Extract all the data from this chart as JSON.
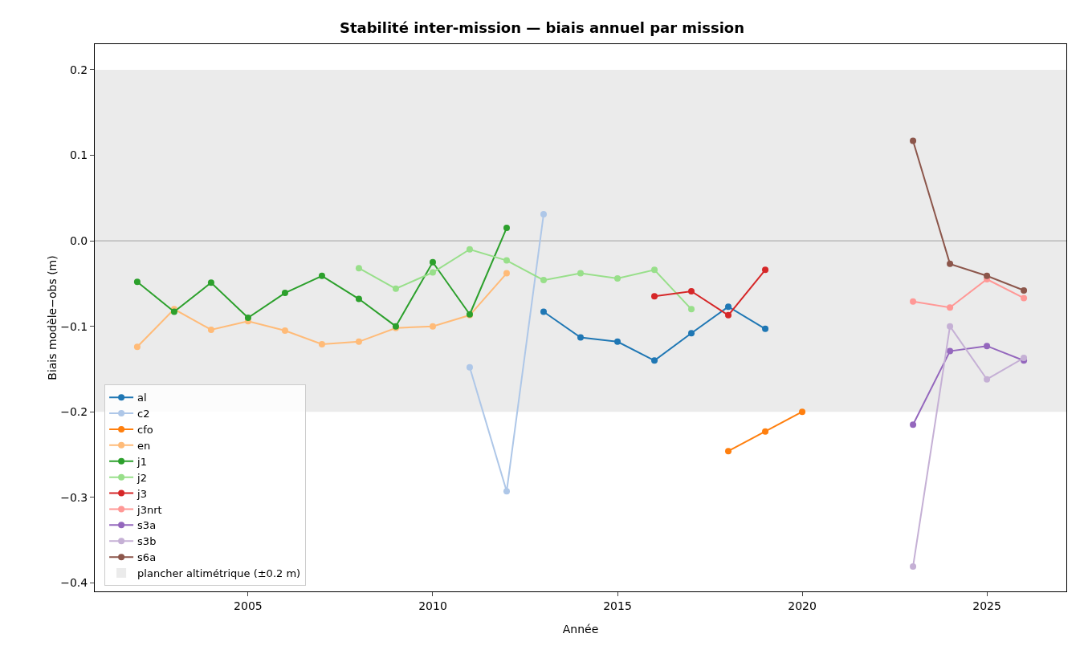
{
  "chart_data": {
    "type": "line",
    "title": "Stabilité inter-mission — biais annuel par mission",
    "xlabel": "Année",
    "ylabel": "Biais modèle−obs (m)",
    "xlim": [
      2000.85,
      2027.15
    ],
    "xticks": [
      2005,
      2010,
      2015,
      2020,
      2025
    ],
    "ylim": [
      -0.41,
      0.23
    ],
    "yticks": [
      {
        "value": -0.4,
        "label": "−0.4"
      },
      {
        "value": -0.3,
        "label": "−0.3"
      },
      {
        "value": -0.2,
        "label": "−0.2"
      },
      {
        "value": -0.1,
        "label": "−0.1"
      },
      {
        "value": 0,
        "label": "0.0"
      },
      {
        "value": 0.1,
        "label": "0.1"
      },
      {
        "value": 0.2,
        "label": "0.2"
      }
    ],
    "grid": false,
    "legend": "bottom left",
    "marker": "circle",
    "line_style": "solid",
    "bands": [
      {
        "axis": "y",
        "from": -0.2,
        "to": 0.2,
        "label": "plancher altimétrique (±0.2 m)",
        "color": "#ebebeb"
      }
    ],
    "ref_lines": [
      {
        "axis": "y",
        "value": 0,
        "label": null,
        "color": "#b0b0b0"
      }
    ],
    "series": [
      {
        "name": "al",
        "color": "#1f77b4",
        "x": [
          2013,
          2014,
          2015,
          2016,
          2017,
          2018,
          2019
        ],
        "values": [
          -0.083,
          -0.113,
          -0.118,
          -0.14,
          -0.108,
          -0.077,
          -0.103
        ]
      },
      {
        "name": "c2",
        "color": "#aec7e8",
        "x": [
          2011,
          2012,
          2013
        ],
        "values": [
          -0.148,
          -0.293,
          0.031
        ]
      },
      {
        "name": "cfo",
        "color": "#ff7f0e",
        "x": [
          2018,
          2019,
          2020
        ],
        "values": [
          -0.246,
          -0.223,
          -0.2
        ]
      },
      {
        "name": "en",
        "color": "#ffbb78",
        "x": [
          2002,
          2003,
          2004,
          2005,
          2006,
          2007,
          2008,
          2009,
          2010,
          2011,
          2012
        ],
        "values": [
          -0.124,
          -0.08,
          -0.104,
          -0.094,
          -0.105,
          -0.121,
          -0.118,
          -0.102,
          -0.1,
          -0.087,
          -0.038
        ]
      },
      {
        "name": "j1",
        "color": "#2ca02c",
        "x": [
          2002,
          2003,
          2004,
          2005,
          2006,
          2007,
          2008,
          2009,
          2010,
          2011,
          2012
        ],
        "values": [
          -0.048,
          -0.083,
          -0.049,
          -0.09,
          -0.061,
          -0.041,
          -0.068,
          -0.1,
          -0.025,
          -0.086,
          0.015
        ]
      },
      {
        "name": "j2",
        "color": "#98df8a",
        "x": [
          2008,
          2009,
          2010,
          2011,
          2012,
          2013,
          2014,
          2015,
          2016,
          2017
        ],
        "values": [
          -0.032,
          -0.056,
          -0.037,
          -0.01,
          -0.023,
          -0.046,
          -0.038,
          -0.044,
          -0.034,
          -0.08
        ]
      },
      {
        "name": "j3",
        "color": "#d62728",
        "x": [
          2016,
          2017,
          2018,
          2019
        ],
        "values": [
          -0.065,
          -0.059,
          -0.087,
          -0.034
        ]
      },
      {
        "name": "j3nrt",
        "color": "#ff9896",
        "x": [
          2023,
          2024,
          2025,
          2026
        ],
        "values": [
          -0.071,
          -0.078,
          -0.045,
          -0.067
        ]
      },
      {
        "name": "s3a",
        "color": "#9467bd",
        "x": [
          2023,
          2024,
          2025,
          2026
        ],
        "values": [
          -0.215,
          -0.129,
          -0.123,
          -0.14
        ]
      },
      {
        "name": "s3b",
        "color": "#c5b0d5",
        "x": [
          2023,
          2024,
          2025,
          2026
        ],
        "values": [
          -0.381,
          -0.1,
          -0.162,
          -0.137
        ]
      },
      {
        "name": "s6a",
        "color": "#8c564b",
        "x": [
          2023,
          2024,
          2025,
          2026
        ],
        "values": [
          0.117,
          -0.027,
          -0.041,
          -0.058
        ]
      }
    ]
  }
}
